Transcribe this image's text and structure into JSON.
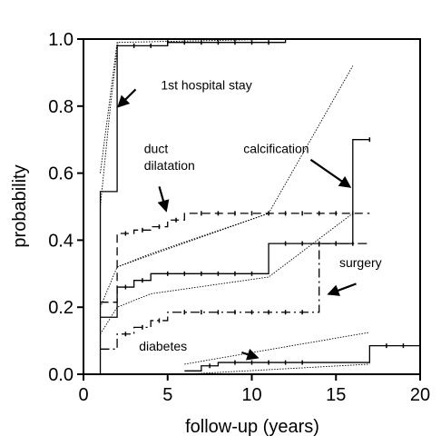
{
  "chart_data": {
    "type": "line",
    "xlabel": "follow-up (years)",
    "ylabel": "probability",
    "xlim": [
      0,
      20
    ],
    "ylim": [
      0,
      1
    ],
    "x_ticks": [
      "0",
      "5",
      "10",
      "15",
      "20"
    ],
    "y_ticks": [
      "0.0",
      "0.2",
      "0.4",
      "0.6",
      "0.8",
      "1.0"
    ],
    "grid": false,
    "series": [
      {
        "name": "1st hospital stay",
        "style": "solid",
        "step": [
          [
            1,
            0
          ],
          [
            1,
            0.545
          ],
          [
            2,
            0.545
          ],
          [
            2,
            0.98
          ],
          [
            5,
            0.98
          ],
          [
            5,
            0.99
          ],
          [
            12,
            0.99
          ],
          [
            12,
            1.0
          ]
        ],
        "censor": [
          [
            3,
            0.98
          ],
          [
            4,
            0.98
          ],
          [
            5,
            0.99
          ],
          [
            6,
            0.99
          ],
          [
            7,
            0.99
          ],
          [
            8,
            0.99
          ],
          [
            9,
            0.99
          ],
          [
            10,
            0.99
          ],
          [
            11,
            0.99
          ]
        ],
        "fit": [
          [
            1,
            0.6
          ],
          [
            2,
            0.99
          ],
          [
            12,
            1.0
          ]
        ],
        "fit2": [
          [
            1,
            0.08
          ],
          [
            1,
            0.5
          ],
          [
            1.6,
            0.8
          ],
          [
            2.05,
            0.99
          ]
        ]
      },
      {
        "name": "duct dilatation",
        "style": "dashed",
        "step": [
          [
            1,
            0.215
          ],
          [
            2,
            0.215
          ],
          [
            2,
            0.42
          ],
          [
            3,
            0.42
          ],
          [
            3,
            0.43
          ],
          [
            4,
            0.43
          ],
          [
            4,
            0.44
          ],
          [
            5,
            0.44
          ],
          [
            5,
            0.46
          ],
          [
            6,
            0.46
          ],
          [
            6,
            0.48
          ],
          [
            17,
            0.48
          ]
        ],
        "censor": [
          [
            2.5,
            0.42
          ],
          [
            3.5,
            0.43
          ],
          [
            4.5,
            0.44
          ],
          [
            5.5,
            0.46
          ],
          [
            7,
            0.48
          ],
          [
            8,
            0.48
          ],
          [
            9,
            0.48
          ],
          [
            10,
            0.48
          ],
          [
            11,
            0.48
          ],
          [
            12,
            0.48
          ],
          [
            13,
            0.48
          ],
          [
            14,
            0.48
          ],
          [
            15,
            0.48
          ],
          [
            16,
            0.48
          ]
        ],
        "fit": [
          [
            1,
            0.2
          ],
          [
            2,
            0.32
          ],
          [
            11,
            0.48
          ]
        ]
      },
      {
        "name": "calcification",
        "style": "solid",
        "step": [
          [
            1,
            0.17
          ],
          [
            2,
            0.17
          ],
          [
            2,
            0.26
          ],
          [
            3,
            0.26
          ],
          [
            3,
            0.28
          ],
          [
            4,
            0.28
          ],
          [
            4,
            0.3
          ],
          [
            11,
            0.3
          ],
          [
            11,
            0.39
          ],
          [
            16,
            0.39
          ],
          [
            16,
            0.7
          ],
          [
            17,
            0.7
          ]
        ],
        "censor": [
          [
            2.5,
            0.26
          ],
          [
            3.5,
            0.28
          ],
          [
            5,
            0.3
          ],
          [
            6,
            0.3
          ],
          [
            7,
            0.3
          ],
          [
            8,
            0.3
          ],
          [
            9,
            0.3
          ],
          [
            10,
            0.3
          ],
          [
            12,
            0.39
          ],
          [
            13,
            0.39
          ],
          [
            14,
            0.39
          ],
          [
            15,
            0.39
          ],
          [
            17,
            0.7
          ]
        ],
        "fit": [
          [
            2,
            0.32
          ],
          [
            4,
            0.36
          ],
          [
            11,
            0.48
          ],
          [
            16,
            0.92
          ]
        ]
      },
      {
        "name": "surgery",
        "style": "dashdot",
        "step": [
          [
            1,
            0.075
          ],
          [
            2,
            0.075
          ],
          [
            2,
            0.12
          ],
          [
            3,
            0.12
          ],
          [
            3,
            0.14
          ],
          [
            4,
            0.14
          ],
          [
            4,
            0.16
          ],
          [
            5,
            0.16
          ],
          [
            5,
            0.185
          ],
          [
            14,
            0.185
          ],
          [
            14,
            0.39
          ],
          [
            17,
            0.39
          ]
        ],
        "censor": [
          [
            2.5,
            0.12
          ],
          [
            3.5,
            0.14
          ],
          [
            4.5,
            0.16
          ],
          [
            6,
            0.185
          ],
          [
            7,
            0.185
          ],
          [
            8,
            0.185
          ],
          [
            9,
            0.185
          ],
          [
            10,
            0.185
          ],
          [
            11,
            0.185
          ],
          [
            12,
            0.185
          ],
          [
            13,
            0.185
          ],
          [
            15,
            0.39
          ],
          [
            16,
            0.39
          ]
        ],
        "fit": [
          [
            1,
            0.12
          ],
          [
            2,
            0.2
          ],
          [
            4,
            0.24
          ],
          [
            11,
            0.29
          ],
          [
            16,
            0.48
          ]
        ]
      },
      {
        "name": "diabetes",
        "style": "solid",
        "step": [
          [
            6,
            0.01
          ],
          [
            7,
            0.01
          ],
          [
            7,
            0.025
          ],
          [
            8,
            0.025
          ],
          [
            8,
            0.035
          ],
          [
            17,
            0.035
          ],
          [
            17,
            0.085
          ],
          [
            20,
            0.085
          ]
        ],
        "censor": [
          [
            7.5,
            0.025
          ],
          [
            9,
            0.035
          ],
          [
            10,
            0.035
          ],
          [
            11,
            0.035
          ],
          [
            12,
            0.035
          ],
          [
            13,
            0.035
          ],
          [
            18,
            0.085
          ],
          [
            19,
            0.085
          ]
        ],
        "fit": [
          [
            6,
            0.03
          ],
          [
            17,
            0.125
          ]
        ],
        "fit2": [
          [
            6,
            0.0
          ],
          [
            17,
            0.03
          ]
        ]
      }
    ],
    "annotations": [
      {
        "text": "1st hospital stay",
        "x": 4.6,
        "y": 0.85,
        "arrow_from": [
          3.1,
          0.85
        ],
        "arrow_to": [
          2.1,
          0.8
        ]
      },
      {
        "text": "duct",
        "x": 3.6,
        "y": 0.66,
        "arrow_from": null,
        "arrow_to": null
      },
      {
        "text": "dilatation",
        "x": 3.6,
        "y": 0.61,
        "arrow_from": [
          4.5,
          0.56
        ],
        "arrow_to": [
          4.9,
          0.49
        ]
      },
      {
        "text": "calcification",
        "x": 9.5,
        "y": 0.66,
        "arrow_from": [
          13.5,
          0.64
        ],
        "arrow_to": [
          15.8,
          0.56
        ]
      },
      {
        "text": "surgery",
        "x": 15.2,
        "y": 0.32,
        "arrow_from": [
          16.2,
          0.27
        ],
        "arrow_to": [
          14.6,
          0.24
        ]
      },
      {
        "text": "diabetes",
        "x": 3.3,
        "y": 0.07,
        "arrow_from": [
          9.4,
          0.065
        ],
        "arrow_to": [
          10.3,
          0.05
        ]
      }
    ],
    "colors": {
      "line": "#000000",
      "background": "#ffffff"
    }
  }
}
